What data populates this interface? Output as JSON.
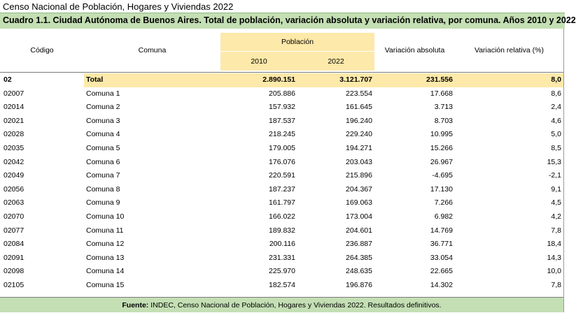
{
  "document": {
    "title": "Censo Nacional de Población, Hogares y Viviendas 2022",
    "table_title": "Cuadro 1.1. Ciudad Autónoma de Buenos Aires. Total de población, variación absoluta y variación relativa, por comuna. Años 2010 y 2022"
  },
  "header": {
    "codigo": "Código",
    "comuna": "Comuna",
    "poblacion": "Población",
    "year_2010": "2010",
    "year_2022": "2022",
    "var_abs": "Variación absoluta",
    "var_rel": "Variación relativa (%)"
  },
  "total": {
    "code": "02",
    "name": "Total",
    "p2010": "2.890.151",
    "p2022": "3.121.707",
    "abs": "231.556",
    "rel": "8,0"
  },
  "rows": [
    {
      "code": "02007",
      "name": "Comuna 1",
      "p2010": "205.886",
      "p2022": "223.554",
      "abs": "17.668",
      "rel": "8,6"
    },
    {
      "code": "02014",
      "name": "Comuna 2",
      "p2010": "157.932",
      "p2022": "161.645",
      "abs": "3.713",
      "rel": "2,4"
    },
    {
      "code": "02021",
      "name": "Comuna 3",
      "p2010": "187.537",
      "p2022": "196.240",
      "abs": "8.703",
      "rel": "4,6"
    },
    {
      "code": "02028",
      "name": "Comuna 4",
      "p2010": "218.245",
      "p2022": "229.240",
      "abs": "10.995",
      "rel": "5,0"
    },
    {
      "code": "02035",
      "name": "Comuna 5",
      "p2010": "179.005",
      "p2022": "194.271",
      "abs": "15.266",
      "rel": "8,5"
    },
    {
      "code": "02042",
      "name": "Comuna 6",
      "p2010": "176.076",
      "p2022": "203.043",
      "abs": "26.967",
      "rel": "15,3"
    },
    {
      "code": "02049",
      "name": "Comuna 7",
      "p2010": "220.591",
      "p2022": "215.896",
      "abs": "-4.695",
      "rel": "-2,1"
    },
    {
      "code": "02056",
      "name": "Comuna 8",
      "p2010": "187.237",
      "p2022": "204.367",
      "abs": "17.130",
      "rel": "9,1"
    },
    {
      "code": "02063",
      "name": "Comuna 9",
      "p2010": "161.797",
      "p2022": "169.063",
      "abs": "7.266",
      "rel": "4,5"
    },
    {
      "code": "02070",
      "name": "Comuna 10",
      "p2010": "166.022",
      "p2022": "173.004",
      "abs": "6.982",
      "rel": "4,2"
    },
    {
      "code": "02077",
      "name": "Comuna 11",
      "p2010": "189.832",
      "p2022": "204.601",
      "abs": "14.769",
      "rel": "7,8"
    },
    {
      "code": "02084",
      "name": "Comuna 12",
      "p2010": "200.116",
      "p2022": "236.887",
      "abs": "36.771",
      "rel": "18,4"
    },
    {
      "code": "02091",
      "name": "Comuna 13",
      "p2010": "231.331",
      "p2022": "264.385",
      "abs": "33.054",
      "rel": "14,3"
    },
    {
      "code": "02098",
      "name": "Comuna 14",
      "p2010": "225.970",
      "p2022": "248.635",
      "abs": "22.665",
      "rel": "10,0"
    },
    {
      "code": "02105",
      "name": "Comuna 15",
      "p2010": "182.574",
      "p2022": "196.876",
      "abs": "14.302",
      "rel": "7,8"
    }
  ],
  "footer": {
    "label": "Fuente:",
    "text": " INDEC, Censo Nacional de Población, Hogares y Viviendas 2022. Resultados definitivos."
  }
}
